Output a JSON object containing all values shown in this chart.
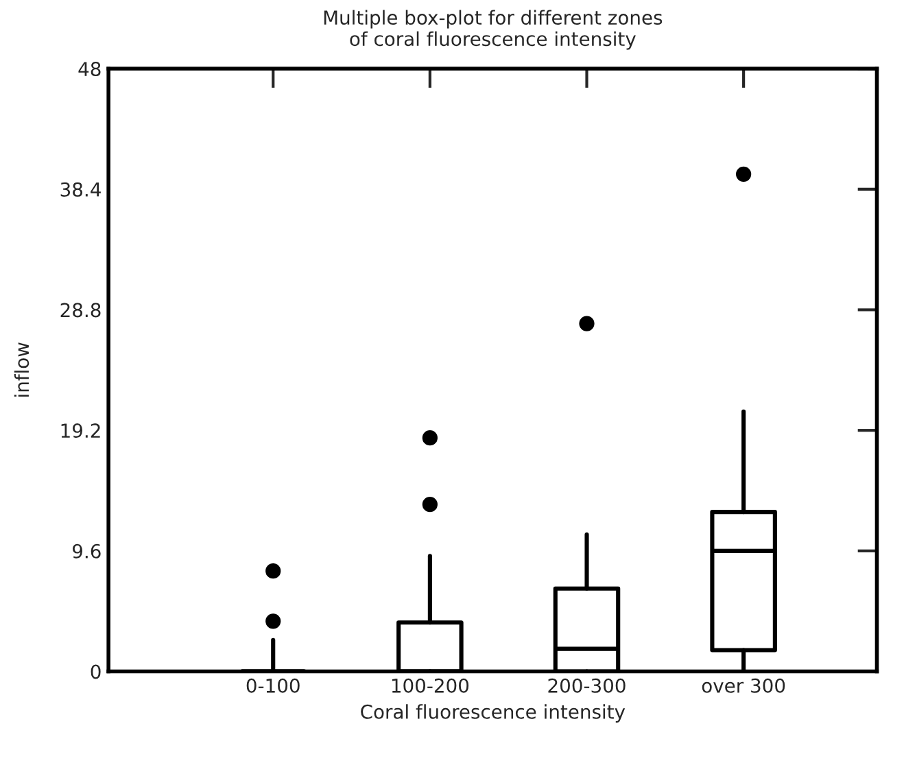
{
  "chart_data": {
    "type": "box",
    "title": "Multiple box-plot for different zones\nof coral fluorescence intensity",
    "xlabel": "Coral fluorescence intensity",
    "ylabel": "inflow",
    "categories": [
      "0-100",
      "100-200",
      "200-300",
      "over 300"
    ],
    "boxes": [
      {
        "low": 0,
        "q1": 0,
        "median": 0,
        "q3": 0,
        "high": 2.5,
        "outliers": [
          4.0,
          8.0
        ]
      },
      {
        "low": 0,
        "q1": 0,
        "median": 0,
        "q3": 3.9,
        "high": 9.2,
        "outliers": [
          13.3,
          18.6
        ]
      },
      {
        "low": 0,
        "q1": 0,
        "median": 1.8,
        "q3": 6.6,
        "high": 10.9,
        "outliers": [
          27.7
        ]
      },
      {
        "low": 0,
        "q1": 1.7,
        "median": 9.6,
        "q3": 12.7,
        "high": 20.7,
        "outliers": [
          39.6
        ]
      }
    ],
    "ylim": [
      0,
      48
    ],
    "yticks": [
      0,
      9.6,
      19.2,
      28.8,
      38.4,
      48
    ],
    "grid": false
  }
}
